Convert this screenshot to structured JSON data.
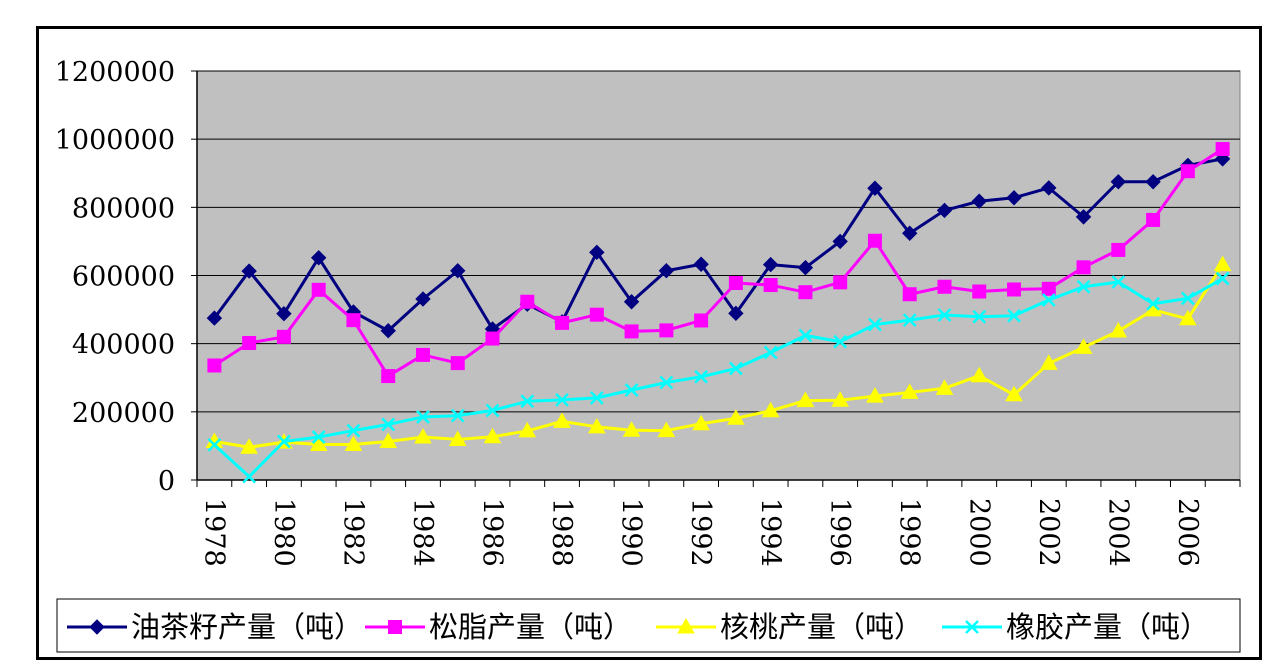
{
  "chart_data": {
    "type": "line",
    "x": [
      1978,
      1979,
      1980,
      1981,
      1982,
      1983,
      1984,
      1985,
      1986,
      1987,
      1988,
      1989,
      1990,
      1991,
      1992,
      1993,
      1994,
      1995,
      1996,
      1997,
      1998,
      1999,
      2000,
      2001,
      2002,
      2003,
      2004,
      2005,
      2006,
      2007
    ],
    "x_tick_labels": [
      "1978",
      "1980",
      "1982",
      "1984",
      "1986",
      "1988",
      "1990",
      "1992",
      "1994",
      "1996",
      "1998",
      "2000",
      "2002",
      "2004",
      "2006"
    ],
    "y_tick_labels": [
      "0",
      "200000",
      "400000",
      "600000",
      "800000",
      "1000000",
      "1200000"
    ],
    "ylim": [
      0,
      1200000
    ],
    "grid": "horizontal",
    "legend_position": "bottom",
    "plot_background": "#c0c0c0",
    "series": [
      {
        "name": "油茶籽产量（吨）",
        "color": "#000080",
        "marker": "diamond",
        "values": [
          475000,
          613000,
          488000,
          652000,
          493000,
          438000,
          531000,
          614000,
          443000,
          516000,
          464000,
          668000,
          523000,
          614000,
          633000,
          489000,
          632000,
          623000,
          700000,
          856000,
          724000,
          791000,
          818000,
          828000,
          857000,
          772000,
          875000,
          875000,
          923000,
          942000
        ]
      },
      {
        "name": "松脂产量（吨）",
        "color": "#ff00ff",
        "marker": "square",
        "values": [
          336000,
          402000,
          420000,
          558000,
          469000,
          305000,
          367000,
          343000,
          415000,
          523000,
          461000,
          485000,
          436000,
          439000,
          468000,
          578000,
          572000,
          551000,
          580000,
          702000,
          545000,
          567000,
          553000,
          559000,
          561000,
          624000,
          675000,
          763000,
          906000,
          971000
        ]
      },
      {
        "name": "核桃产量（吨）",
        "color": "#ffff00",
        "marker": "triangle",
        "values": [
          113000,
          96000,
          111000,
          104000,
          104000,
          113000,
          126000,
          119000,
          127000,
          144000,
          172000,
          156000,
          146000,
          145000,
          165000,
          181000,
          203000,
          233000,
          234000,
          246000,
          257000,
          269000,
          306000,
          250000,
          342000,
          389000,
          437000,
          499000,
          473000,
          632000
        ]
      },
      {
        "name": "橡胶产量（吨）",
        "color": "#00ffff",
        "marker": "x",
        "values": [
          103000,
          10000,
          113000,
          126000,
          145000,
          163000,
          185000,
          189000,
          204000,
          231000,
          235000,
          241000,
          264000,
          286000,
          303000,
          327000,
          374000,
          424000,
          406000,
          456000,
          469000,
          484000,
          479000,
          482000,
          528000,
          567000,
          581000,
          517000,
          533000,
          591000
        ]
      }
    ]
  }
}
